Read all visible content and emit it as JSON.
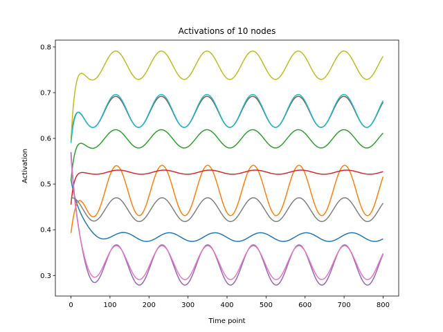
{
  "chart_data": {
    "type": "line",
    "title": "Activations of 10 nodes",
    "xlabel": "Time point",
    "ylabel": "Activation",
    "xlim": [
      -40,
      840
    ],
    "ylim": [
      0.255,
      0.815
    ],
    "xticks": [
      0,
      100,
      200,
      300,
      400,
      500,
      600,
      700,
      800
    ],
    "yticks": [
      0.3,
      0.4,
      0.5,
      0.6,
      0.7,
      0.8
    ],
    "ytick_labels": [
      "0.3",
      "0.4",
      "0.5",
      "0.6",
      "0.7",
      "0.8"
    ],
    "grid": false,
    "legend": false,
    "series_params": [
      {
        "color": "#1f77b4",
        "start": 0.51,
        "mean": 0.384,
        "amp": 0.0095,
        "period": 117,
        "phase": 0.6,
        "tau": 25
      },
      {
        "color": "#ff7f0e",
        "start": 0.393,
        "mean": 0.486,
        "amp": 0.055,
        "period": 117,
        "phase": 1.6,
        "tau": 22
      },
      {
        "color": "#2ca02c",
        "start": 0.507,
        "mean": 0.599,
        "amp": 0.02,
        "period": 117,
        "phase": 1.7,
        "tau": 12
      },
      {
        "color": "#d62728",
        "start": 0.455,
        "mean": 0.526,
        "amp": 0.0045,
        "period": 117,
        "phase": 1.3,
        "tau": 8
      },
      {
        "color": "#9467bd",
        "start": 0.57,
        "mean": 0.323,
        "amp": 0.044,
        "period": 117,
        "phase": 1.6,
        "tau": 15
      },
      {
        "color": "#8c564b",
        "start": 0.6,
        "mean": 0.658,
        "amp": 0.034,
        "period": 117,
        "phase": 1.7,
        "tau": 12
      },
      {
        "color": "#e377c2",
        "start": 0.56,
        "mean": 0.328,
        "amp": 0.037,
        "period": 117,
        "phase": 1.6,
        "tau": 15
      },
      {
        "color": "#7f7f7f",
        "start": 0.47,
        "mean": 0.444,
        "amp": 0.026,
        "period": 117,
        "phase": 1.6,
        "tau": 15
      },
      {
        "color": "#bcbd22",
        "start": 0.595,
        "mean": 0.76,
        "amp": 0.031,
        "period": 117,
        "phase": 1.7,
        "tau": 12
      },
      {
        "color": "#17becf",
        "start": 0.59,
        "mean": 0.66,
        "amp": 0.036,
        "period": 117,
        "phase": 1.7,
        "tau": 12
      }
    ]
  }
}
